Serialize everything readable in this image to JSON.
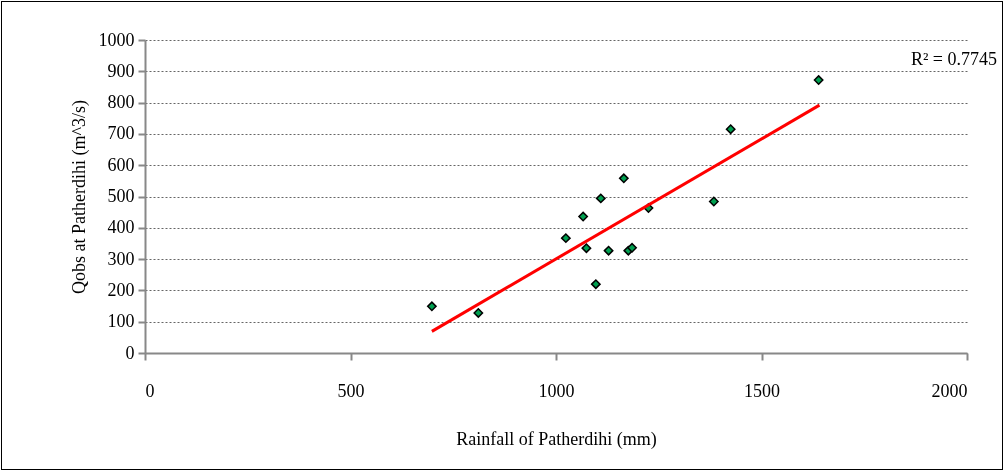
{
  "chart_data": {
    "type": "scatter",
    "xlabel": "Rainfall of Patherdihi (mm)",
    "ylabel": "Qobs at  Patherdihi (m^3/s)",
    "x": [
      698,
      811,
      1024,
      1066,
      1074,
      1097,
      1109,
      1128,
      1165,
      1176,
      1185,
      1225,
      1384,
      1425,
      1639
    ],
    "series": [
      {
        "color": "#00a050",
        "marker": "diamond",
        "values": [
          149,
          128,
          367,
          436,
          335,
          220,
          494,
          327,
          558,
          327,
          336,
          463,
          484,
          715,
          872
        ]
      },
      {
        "type": "line",
        "color": "#ff0000",
        "x": [
          698,
          1641
        ],
        "values": [
          69,
          792
        ]
      }
    ],
    "xlim": [
      0,
      2000
    ],
    "xticks": [
      0,
      500,
      1000,
      1500,
      2000
    ],
    "ylim": [
      0,
      1000
    ],
    "yticks": [
      0,
      100,
      200,
      300,
      400,
      500,
      600,
      700,
      800,
      900,
      1000
    ],
    "grid": "y",
    "annotations": [
      "R² = 0.7745"
    ]
  }
}
